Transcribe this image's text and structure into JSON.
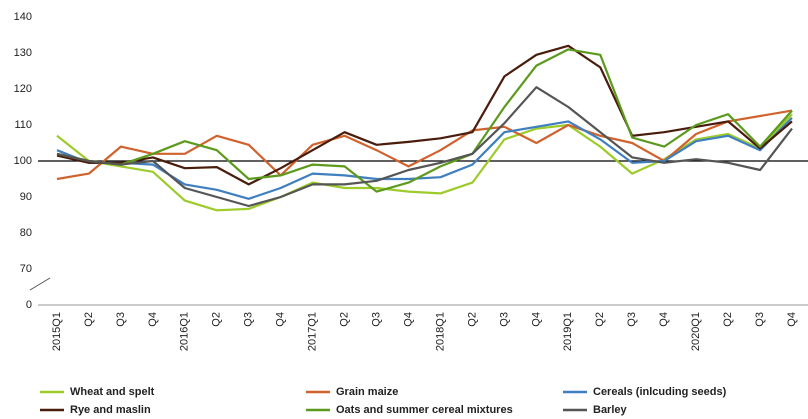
{
  "chart_data": {
    "type": "line",
    "categories": [
      "2015Q1",
      "Q2",
      "Q3",
      "Q4",
      "2016Q1",
      "Q2",
      "Q3",
      "Q4",
      "2017Q1",
      "Q2",
      "Q3",
      "Q4",
      "2018Q1",
      "Q2",
      "Q3",
      "Q4",
      "2019Q1",
      "Q2",
      "Q3",
      "Q4",
      "2020Q1",
      "Q2",
      "Q3",
      "Q4"
    ],
    "series": [
      {
        "name": "Wheat and spelt",
        "color": "#9ccb2a",
        "values": [
          107,
          100,
          98.5,
          97,
          89,
          86.3,
          86.7,
          90,
          94,
          92.5,
          92.5,
          91.5,
          91,
          94,
          106,
          109,
          110,
          104,
          96.5,
          100.5,
          106,
          107.5,
          103.5,
          113
        ]
      },
      {
        "name": "Grain maize",
        "color": "#d0622e",
        "values": [
          95,
          96.5,
          104,
          102,
          102,
          107,
          104.5,
          96,
          104.5,
          107,
          103,
          98.5,
          103,
          108.5,
          109.5,
          105,
          110,
          107,
          105,
          100,
          107.5,
          111,
          112.5,
          114
        ]
      },
      {
        "name": "Cereals (inlcuding seeds)",
        "color": "#3f7fc0",
        "values": [
          103,
          99.5,
          99.5,
          99,
          93.5,
          92,
          89.5,
          92.5,
          96.5,
          96,
          95,
          95,
          95.5,
          99,
          108,
          109.5,
          111,
          106,
          99.5,
          100,
          105.5,
          107,
          103,
          112
        ]
      },
      {
        "name": "Rye and maslin",
        "color": "#4a1c0c",
        "values": [
          101.5,
          99.5,
          99.5,
          101,
          98,
          98.3,
          93.5,
          98,
          103,
          108,
          104.5,
          105.3,
          106.3,
          108,
          123.5,
          129.5,
          132,
          126,
          107,
          108,
          109.5,
          111,
          103.5,
          111
        ]
      },
      {
        "name": "Oats and summer cereal mixtures",
        "color": "#5c9a1e",
        "values": [
          102,
          100,
          99,
          102,
          105.5,
          103,
          95,
          96,
          99,
          98.5,
          91.5,
          94,
          98.5,
          102,
          115,
          126.5,
          131,
          129.5,
          106.5,
          104,
          110,
          113,
          104,
          114
        ]
      },
      {
        "name": "Barley",
        "color": "#555555",
        "values": [
          102,
          100,
          99,
          100,
          92.5,
          90,
          87.5,
          90,
          93.5,
          93.5,
          94.5,
          97.5,
          99.5,
          102,
          110.5,
          120.5,
          115,
          108,
          101,
          99.5,
          100.5,
          99.5,
          97.5,
          109
        ]
      }
    ],
    "ylim": [
      0,
      140
    ],
    "yticks": [
      0,
      70,
      80,
      90,
      100,
      110,
      120,
      130,
      140
    ],
    "broken_axis": true,
    "reference_line": 100,
    "grid": false,
    "legend": "bottom"
  }
}
